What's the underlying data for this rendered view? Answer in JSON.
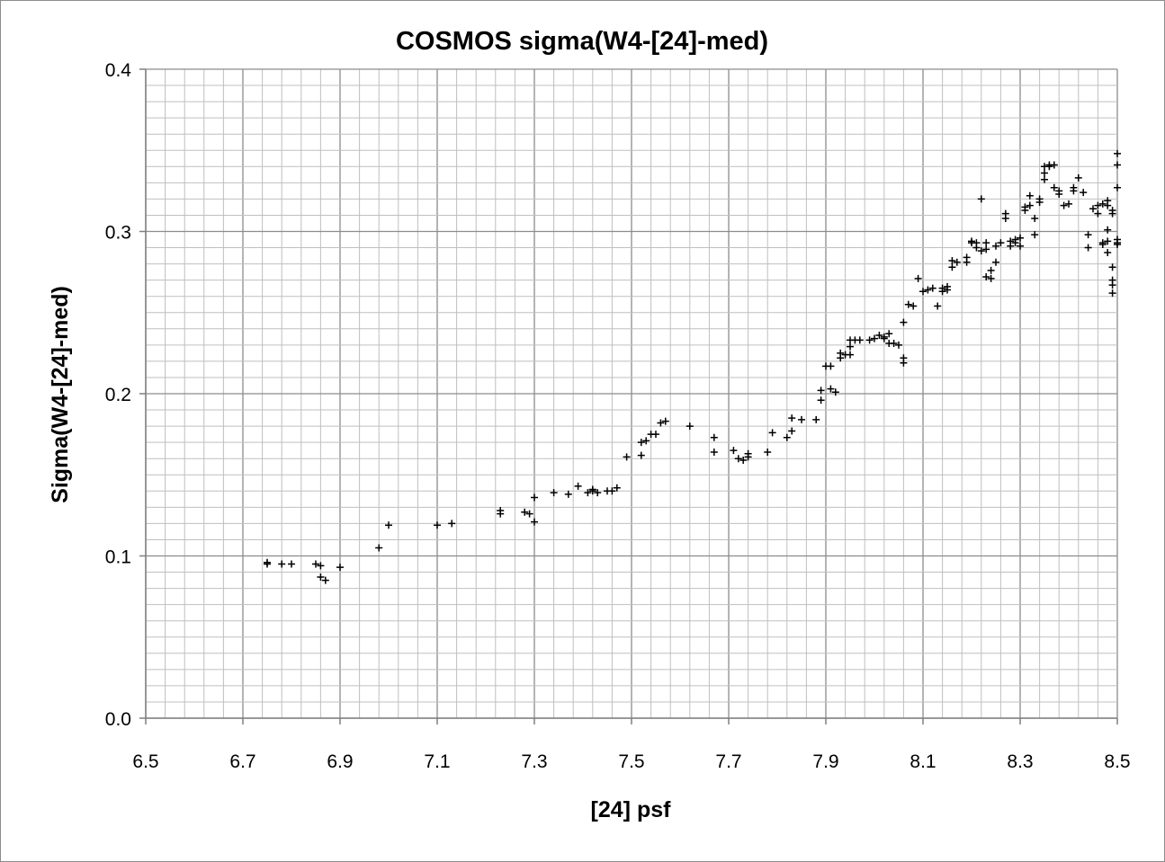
{
  "chart_data": {
    "type": "scatter",
    "title": "COSMOS sigma(W4-[24]-med)",
    "xlabel": "[24] psf",
    "ylabel": "Sigma(W4-[24]-med)",
    "xlim": [
      6.5,
      8.5
    ],
    "ylim": [
      0.0,
      0.4
    ],
    "x_ticks": [
      "6.5",
      "6.7",
      "6.9",
      "7.1",
      "7.3",
      "7.5",
      "7.7",
      "7.9",
      "8.1",
      "8.3",
      "8.5"
    ],
    "y_ticks": [
      "0.0",
      "0.1",
      "0.2",
      "0.3",
      "0.4"
    ],
    "x_tick_values": [
      6.5,
      6.7,
      6.9,
      7.1,
      7.3,
      7.5,
      7.7,
      7.9,
      8.1,
      8.3,
      8.5
    ],
    "y_tick_values": [
      0.0,
      0.1,
      0.2,
      0.3,
      0.4
    ],
    "grid": true,
    "minor_grid": {
      "x_step": 0.04,
      "y_step": 0.01
    },
    "major_grid": {
      "x_step": 0.2,
      "y_step": 0.1
    },
    "marker": "+",
    "marker_color": "#000000",
    "grid_color": "#bfbfbf",
    "major_grid_color": "#8c8c8c",
    "points": [
      [
        6.75,
        0.096
      ],
      [
        6.75,
        0.095
      ],
      [
        6.78,
        0.095
      ],
      [
        6.8,
        0.095
      ],
      [
        6.85,
        0.095
      ],
      [
        6.86,
        0.094
      ],
      [
        6.86,
        0.087
      ],
      [
        6.87,
        0.085
      ],
      [
        6.9,
        0.093
      ],
      [
        6.98,
        0.105
      ],
      [
        7.0,
        0.119
      ],
      [
        7.1,
        0.119
      ],
      [
        7.13,
        0.12
      ],
      [
        7.23,
        0.128
      ],
      [
        7.23,
        0.126
      ],
      [
        7.28,
        0.127
      ],
      [
        7.29,
        0.126
      ],
      [
        7.3,
        0.121
      ],
      [
        7.3,
        0.136
      ],
      [
        7.34,
        0.139
      ],
      [
        7.37,
        0.138
      ],
      [
        7.39,
        0.143
      ],
      [
        7.41,
        0.139
      ],
      [
        7.42,
        0.14
      ],
      [
        7.42,
        0.141
      ],
      [
        7.43,
        0.139
      ],
      [
        7.45,
        0.14
      ],
      [
        7.46,
        0.14
      ],
      [
        7.47,
        0.142
      ],
      [
        7.49,
        0.161
      ],
      [
        7.52,
        0.162
      ],
      [
        7.52,
        0.17
      ],
      [
        7.53,
        0.171
      ],
      [
        7.54,
        0.175
      ],
      [
        7.55,
        0.175
      ],
      [
        7.56,
        0.182
      ],
      [
        7.57,
        0.183
      ],
      [
        7.62,
        0.18
      ],
      [
        7.67,
        0.173
      ],
      [
        7.67,
        0.164
      ],
      [
        7.71,
        0.165
      ],
      [
        7.72,
        0.16
      ],
      [
        7.73,
        0.159
      ],
      [
        7.74,
        0.161
      ],
      [
        7.74,
        0.163
      ],
      [
        7.78,
        0.164
      ],
      [
        7.79,
        0.176
      ],
      [
        7.82,
        0.173
      ],
      [
        7.83,
        0.177
      ],
      [
        7.83,
        0.185
      ],
      [
        7.85,
        0.184
      ],
      [
        7.88,
        0.184
      ],
      [
        7.89,
        0.196
      ],
      [
        7.89,
        0.202
      ],
      [
        7.9,
        0.217
      ],
      [
        7.91,
        0.217
      ],
      [
        7.91,
        0.203
      ],
      [
        7.92,
        0.201
      ],
      [
        7.93,
        0.225
      ],
      [
        7.93,
        0.222
      ],
      [
        7.94,
        0.224
      ],
      [
        7.95,
        0.224
      ],
      [
        7.95,
        0.229
      ],
      [
        7.95,
        0.233
      ],
      [
        7.96,
        0.233
      ],
      [
        7.97,
        0.233
      ],
      [
        7.99,
        0.233
      ],
      [
        8.0,
        0.234
      ],
      [
        8.01,
        0.236
      ],
      [
        8.02,
        0.235
      ],
      [
        8.02,
        0.234
      ],
      [
        8.03,
        0.231
      ],
      [
        8.03,
        0.237
      ],
      [
        8.04,
        0.231
      ],
      [
        8.05,
        0.23
      ],
      [
        8.06,
        0.222
      ],
      [
        8.06,
        0.219
      ],
      [
        8.06,
        0.244
      ],
      [
        8.07,
        0.255
      ],
      [
        8.08,
        0.254
      ],
      [
        8.09,
        0.271
      ],
      [
        8.1,
        0.263
      ],
      [
        8.11,
        0.264
      ],
      [
        8.12,
        0.265
      ],
      [
        8.13,
        0.254
      ],
      [
        8.14,
        0.263
      ],
      [
        8.14,
        0.265
      ],
      [
        8.15,
        0.266
      ],
      [
        8.15,
        0.264
      ],
      [
        8.16,
        0.278
      ],
      [
        8.16,
        0.282
      ],
      [
        8.17,
        0.281
      ],
      [
        8.19,
        0.284
      ],
      [
        8.19,
        0.281
      ],
      [
        8.2,
        0.293
      ],
      [
        8.2,
        0.294
      ],
      [
        8.21,
        0.293
      ],
      [
        8.21,
        0.29
      ],
      [
        8.22,
        0.32
      ],
      [
        8.22,
        0.288
      ],
      [
        8.23,
        0.293
      ],
      [
        8.23,
        0.289
      ],
      [
        8.23,
        0.272
      ],
      [
        8.24,
        0.271
      ],
      [
        8.24,
        0.276
      ],
      [
        8.25,
        0.281
      ],
      [
        8.25,
        0.291
      ],
      [
        8.26,
        0.293
      ],
      [
        8.27,
        0.308
      ],
      [
        8.27,
        0.311
      ],
      [
        8.28,
        0.291
      ],
      [
        8.28,
        0.294
      ],
      [
        8.29,
        0.293
      ],
      [
        8.29,
        0.295
      ],
      [
        8.3,
        0.291
      ],
      [
        8.3,
        0.296
      ],
      [
        8.31,
        0.315
      ],
      [
        8.31,
        0.313
      ],
      [
        8.32,
        0.316
      ],
      [
        8.32,
        0.322
      ],
      [
        8.33,
        0.308
      ],
      [
        8.33,
        0.298
      ],
      [
        8.34,
        0.32
      ],
      [
        8.34,
        0.318
      ],
      [
        8.35,
        0.332
      ],
      [
        8.35,
        0.336
      ],
      [
        8.35,
        0.34
      ],
      [
        8.36,
        0.34
      ],
      [
        8.36,
        0.341
      ],
      [
        8.37,
        0.341
      ],
      [
        8.37,
        0.327
      ],
      [
        8.38,
        0.325
      ],
      [
        8.38,
        0.323
      ],
      [
        8.39,
        0.316
      ],
      [
        8.4,
        0.317
      ],
      [
        8.41,
        0.327
      ],
      [
        8.41,
        0.325
      ],
      [
        8.42,
        0.333
      ],
      [
        8.43,
        0.324
      ],
      [
        8.44,
        0.29
      ],
      [
        8.44,
        0.298
      ],
      [
        8.45,
        0.314
      ],
      [
        8.46,
        0.316
      ],
      [
        8.46,
        0.311
      ],
      [
        8.47,
        0.317
      ],
      [
        8.47,
        0.293
      ],
      [
        8.48,
        0.294
      ],
      [
        8.48,
        0.301
      ],
      [
        8.48,
        0.287
      ],
      [
        8.49,
        0.27
      ],
      [
        8.49,
        0.262
      ],
      [
        8.49,
        0.267
      ],
      [
        8.49,
        0.278
      ],
      [
        8.5,
        0.293
      ],
      [
        8.5,
        0.295
      ],
      [
        8.5,
        0.292
      ],
      [
        8.47,
        0.292
      ],
      [
        8.48,
        0.319
      ],
      [
        8.49,
        0.313
      ],
      [
        8.5,
        0.327
      ],
      [
        8.5,
        0.341
      ],
      [
        8.5,
        0.348
      ],
      [
        8.49,
        0.311
      ],
      [
        8.48,
        0.316
      ]
    ]
  }
}
